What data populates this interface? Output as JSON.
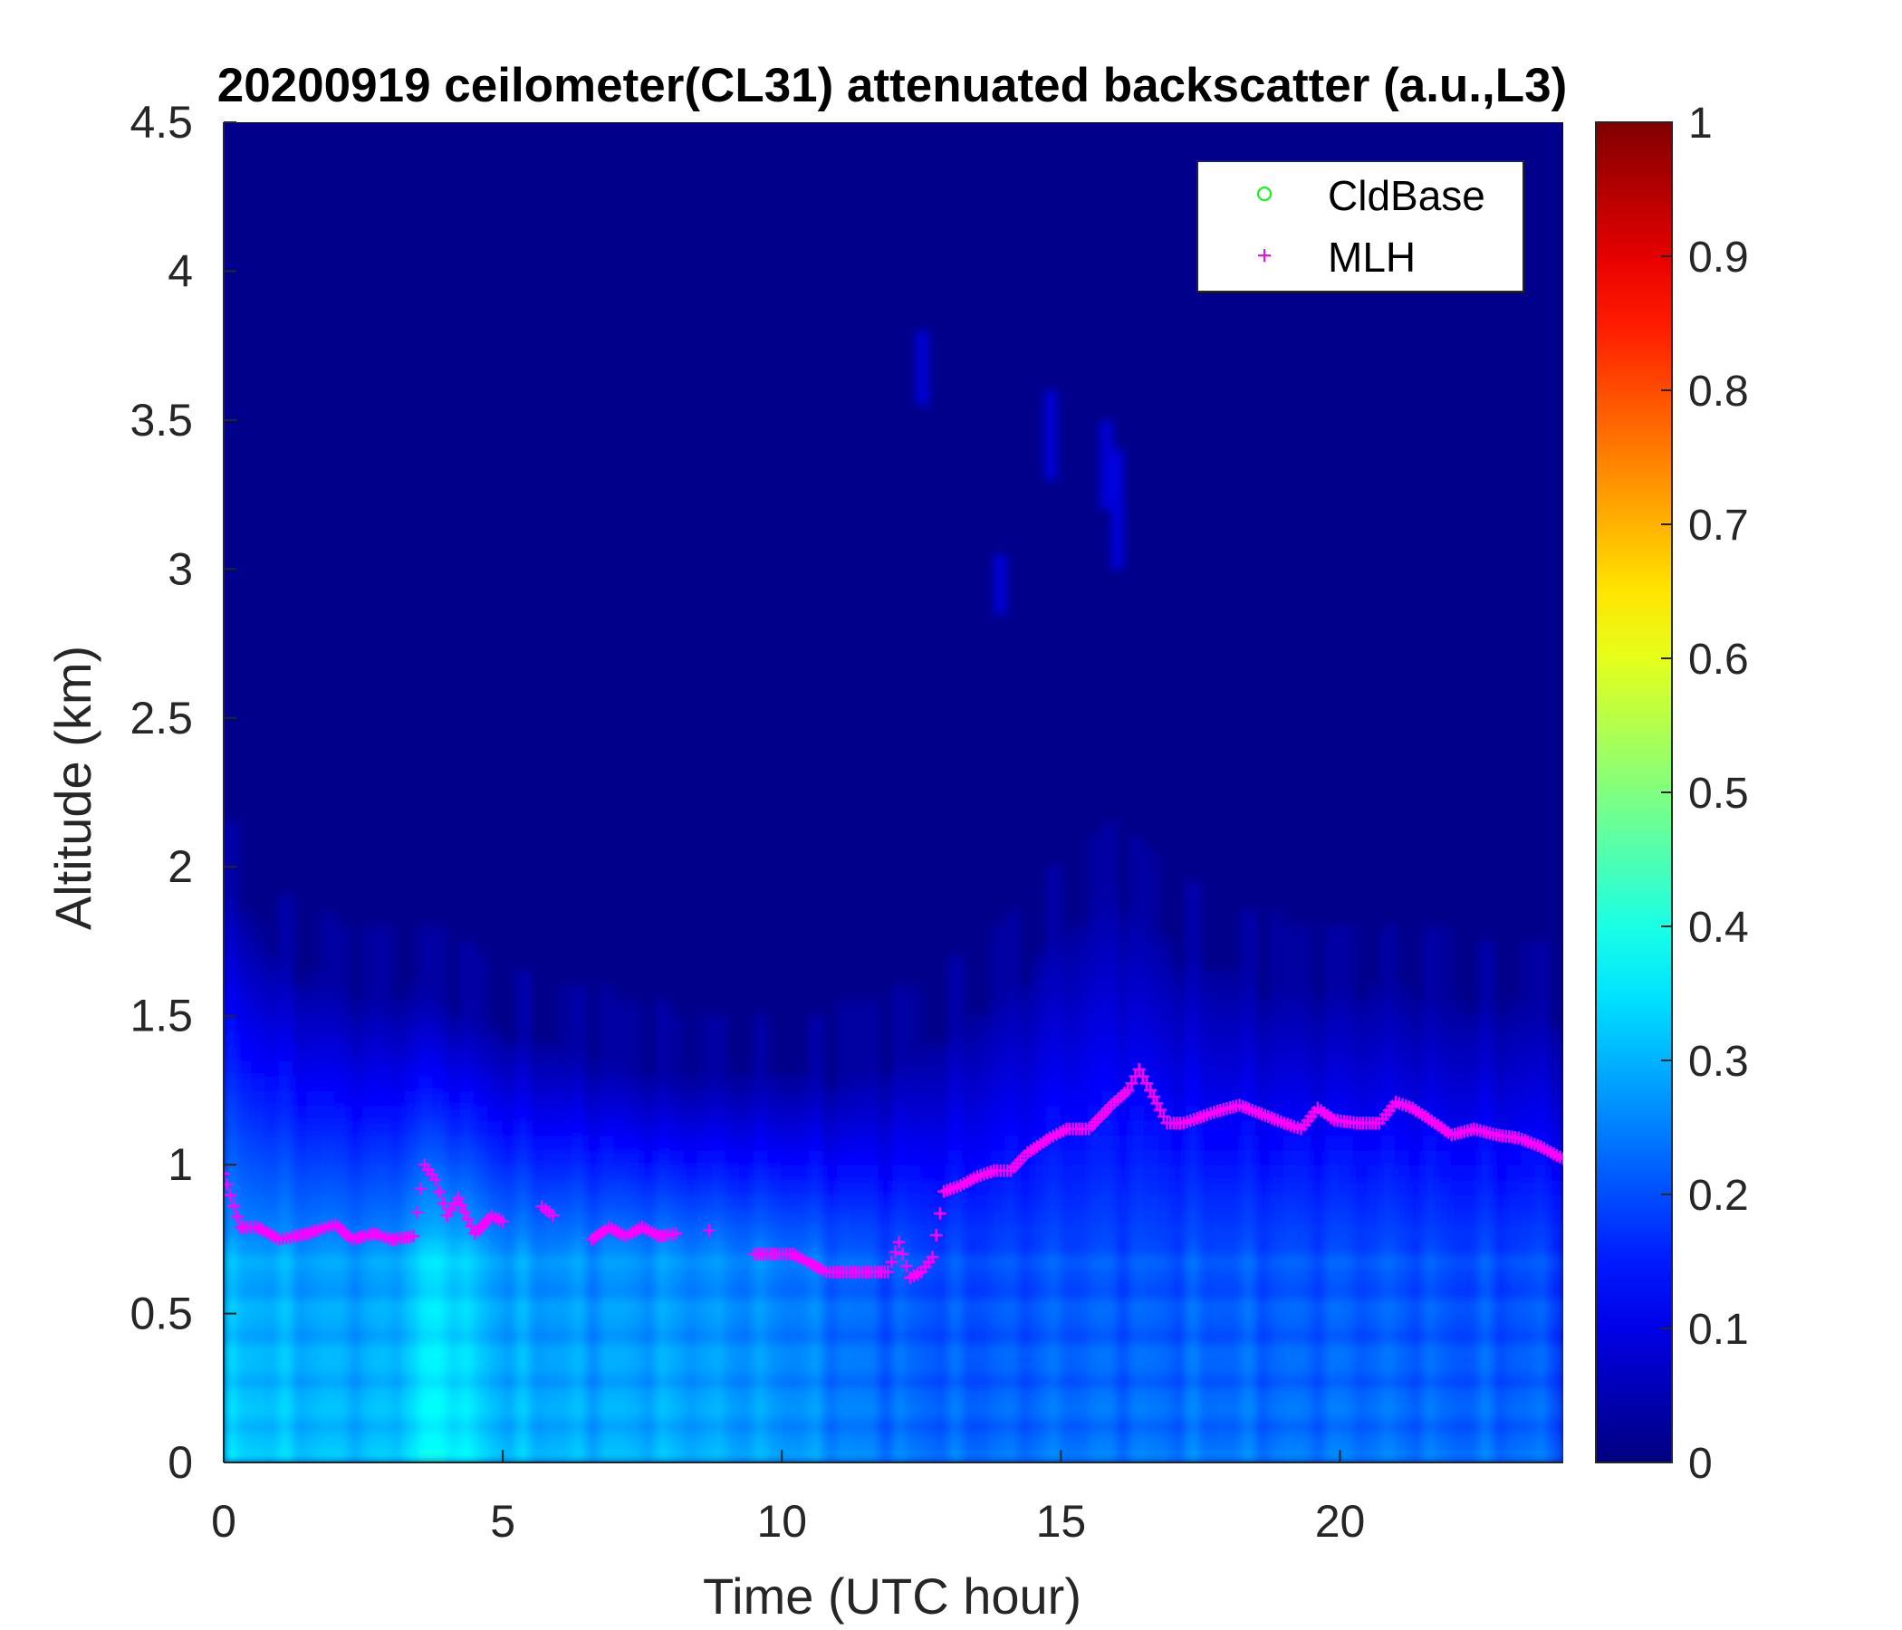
{
  "chart_data": {
    "type": "heatmap",
    "title": "20200919 ceilometer(CL31) attenuated backscatter (a.u.,L3)",
    "xlabel": "Time (UTC hour)",
    "ylabel": "Altitude (km)",
    "xlim": [
      0,
      24
    ],
    "ylim": [
      0,
      4.5
    ],
    "xticks": [
      0,
      5,
      10,
      15,
      20
    ],
    "xtick_labels": [
      "0",
      "5",
      "10",
      "15",
      "20"
    ],
    "yticks": [
      0,
      0.5,
      1,
      1.5,
      2,
      2.5,
      3,
      3.5,
      4,
      4.5
    ],
    "ytick_labels": [
      "0",
      "0.5",
      "1",
      "1.5",
      "2",
      "2.5",
      "3",
      "3.5",
      "4",
      "4.5"
    ],
    "colorbar": {
      "min": 0,
      "max": 1,
      "ticks": [
        0,
        0.1,
        0.2,
        0.3,
        0.4,
        0.5,
        0.6,
        0.7,
        0.8,
        0.9,
        1
      ],
      "tick_labels": [
        "0",
        "0.1",
        "0.2",
        "0.3",
        "0.4",
        "0.5",
        "0.6",
        "0.7",
        "0.8",
        "0.9",
        "1"
      ],
      "colormap": "jet"
    },
    "legend": {
      "placement": "top-right",
      "entries": [
        {
          "name": "CldBase",
          "marker": "circle",
          "color": "#00ff00"
        },
        {
          "name": "MLH",
          "marker": "plus",
          "color": "#ff00ff"
        }
      ]
    },
    "heatmap_profile": {
      "description_free_values": true,
      "times": [
        0,
        1,
        2,
        3,
        3.5,
        4,
        4.5,
        5,
        6,
        7,
        8,
        9,
        10,
        11,
        12,
        13,
        14,
        15,
        16,
        17,
        18,
        19,
        20,
        21,
        22,
        23,
        24
      ],
      "surface_value": [
        0.33,
        0.32,
        0.31,
        0.31,
        0.36,
        0.38,
        0.34,
        0.31,
        0.3,
        0.3,
        0.3,
        0.29,
        0.28,
        0.26,
        0.24,
        0.23,
        0.23,
        0.24,
        0.24,
        0.24,
        0.24,
        0.24,
        0.24,
        0.24,
        0.23,
        0.23,
        0.23
      ],
      "aerosol_top_km": [
        1.95,
        1.7,
        1.6,
        1.55,
        1.6,
        1.55,
        1.5,
        1.45,
        1.4,
        1.35,
        1.3,
        1.3,
        1.3,
        1.3,
        1.35,
        1.45,
        1.6,
        1.8,
        1.95,
        1.75,
        1.65,
        1.6,
        1.6,
        1.6,
        1.55,
        1.55,
        1.55
      ]
    },
    "series": [
      {
        "name": "MLH",
        "marker": "plus",
        "color": "#ff00ff",
        "x": [
          0,
          0.3,
          0.6,
          1.0,
          1.5,
          2.0,
          2.3,
          2.7,
          3.0,
          3.4,
          3.6,
          3.8,
          4.0,
          4.2,
          4.5,
          4.8,
          5.0,
          5.7,
          5.9,
          6.6,
          6.9,
          7.2,
          7.5,
          7.8,
          8.1,
          8.7,
          9.5,
          9.9,
          10.2,
          10.5,
          10.8,
          11.1,
          11.5,
          11.9,
          12.1,
          12.3,
          12.5,
          12.7,
          12.9,
          13.2,
          13.5,
          13.8,
          14.1,
          14.4,
          14.8,
          15.1,
          15.5,
          15.9,
          16.2,
          16.4,
          16.6,
          16.9,
          17.2,
          17.5,
          17.8,
          18.2,
          18.6,
          19.0,
          19.3,
          19.6,
          19.9,
          20.3,
          20.7,
          21.0,
          21.3,
          21.7,
          22.0,
          22.4,
          22.8,
          23.2,
          23.6,
          24.0
        ],
        "y": [
          0.97,
          0.79,
          0.79,
          0.75,
          0.77,
          0.8,
          0.75,
          0.77,
          0.75,
          0.76,
          1.0,
          0.95,
          0.83,
          0.89,
          0.77,
          0.83,
          0.81,
          0.86,
          0.83,
          0.75,
          0.79,
          0.76,
          0.79,
          0.76,
          0.77,
          0.78,
          0.7,
          0.7,
          0.7,
          0.67,
          0.64,
          0.64,
          0.64,
          0.64,
          0.74,
          0.62,
          0.64,
          0.69,
          0.91,
          0.93,
          0.96,
          0.98,
          0.98,
          1.04,
          1.09,
          1.12,
          1.12,
          1.2,
          1.25,
          1.32,
          1.25,
          1.14,
          1.14,
          1.16,
          1.18,
          1.2,
          1.17,
          1.14,
          1.12,
          1.19,
          1.15,
          1.14,
          1.14,
          1.21,
          1.19,
          1.14,
          1.1,
          1.12,
          1.1,
          1.09,
          1.06,
          1.02
        ]
      },
      {
        "name": "CldBase",
        "marker": "circle",
        "color": "#00ff00",
        "x": [],
        "y": []
      }
    ]
  }
}
